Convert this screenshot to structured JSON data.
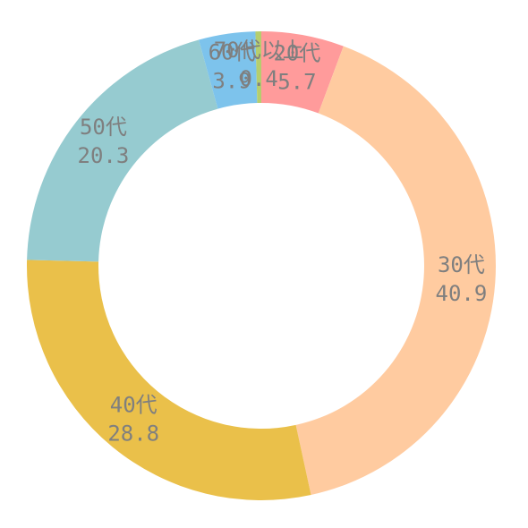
{
  "chart_data": {
    "type": "pie",
    "donut": true,
    "categories": [
      "20代",
      "30代",
      "40代",
      "50代",
      "60代",
      "70代以上"
    ],
    "values": [
      5.7,
      40.9,
      28.8,
      20.3,
      3.9,
      0.4
    ],
    "value_labels": [
      "5.7",
      "40.9",
      "28.8",
      "20.3",
      "3.9",
      "0.4"
    ],
    "colors": [
      "#FF9B9B",
      "#FFCBA0",
      "#EAC04A",
      "#96CBD0",
      "#7DC3EC",
      "#B5CE6E"
    ],
    "label_color": "#7F7F7F",
    "start_angle_degrees": 0,
    "direction": "clockwise",
    "title": ""
  }
}
